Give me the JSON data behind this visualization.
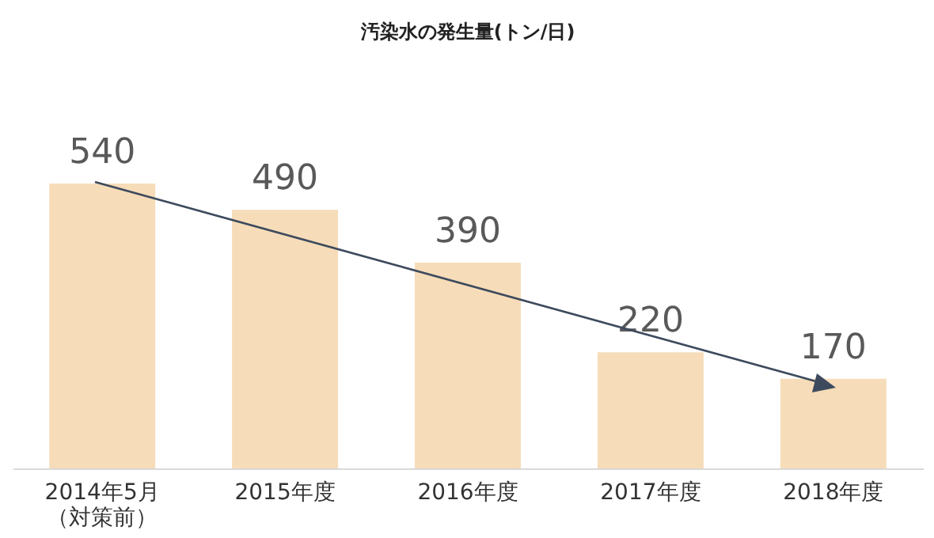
{
  "chart_data": {
    "type": "bar",
    "title": "汚染水の発生量(トン/日)",
    "categories": [
      "2014年5月（対策前）",
      "2015年度",
      "2016年度",
      "2017年度",
      "2018年度"
    ],
    "values": [
      540,
      490,
      390,
      220,
      170
    ],
    "color": "#f6dcb8",
    "data_labels": true
  }
}
